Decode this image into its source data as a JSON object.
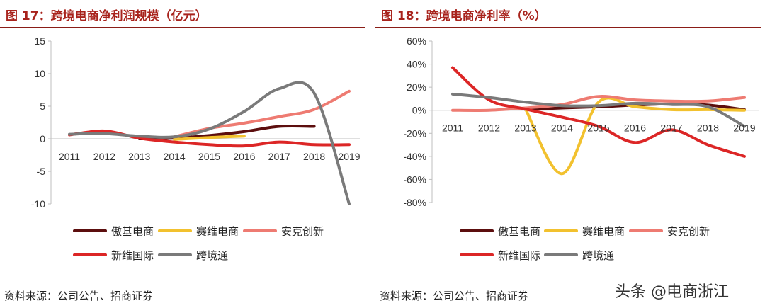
{
  "watermark": "头条 @电商浙江",
  "chart_data": [
    {
      "type": "line",
      "title": "图 17：跨境电商净利润规模（亿元）",
      "source": "资料来源：公司公告、招商证券",
      "x": [
        "2011",
        "2012",
        "2013",
        "2014",
        "2015",
        "2016",
        "2017",
        "2018",
        "2019"
      ],
      "ylim": [
        -10,
        15
      ],
      "yticks": [
        "15",
        "10",
        "5",
        "0",
        "-5",
        "-10"
      ],
      "grid": false,
      "legend_position": "bottom",
      "series": [
        {
          "name": "傲基电商",
          "color": "#5c0e0e",
          "points": [
            [
              "2013",
              0.0
            ],
            [
              "2014",
              0.1
            ],
            [
              "2015",
              0.5
            ],
            [
              "2016",
              1.1
            ],
            [
              "2017",
              1.9
            ],
            [
              "2018",
              1.9
            ]
          ]
        },
        {
          "name": "赛维电商",
          "color": "#f2c12e",
          "points": [
            [
              "2014",
              -0.1
            ],
            [
              "2015",
              0.2
            ],
            [
              "2016",
              0.4
            ]
          ]
        },
        {
          "name": "安克创新",
          "color": "#ee7b72",
          "points": [
            [
              "2014",
              0.3
            ],
            [
              "2015",
              1.6
            ],
            [
              "2016",
              2.4
            ],
            [
              "2017",
              3.4
            ],
            [
              "2018",
              4.5
            ],
            [
              "2019",
              7.3
            ]
          ]
        },
        {
          "name": "新维国际",
          "color": "#dc2626",
          "points": [
            [
              "2011",
              0.6
            ],
            [
              "2012",
              1.2
            ],
            [
              "2013",
              0.1
            ],
            [
              "2014",
              -0.5
            ],
            [
              "2015",
              -0.9
            ],
            [
              "2016",
              -1.1
            ],
            [
              "2017",
              -0.5
            ],
            [
              "2018",
              -0.9
            ],
            [
              "2019",
              -0.9
            ]
          ]
        },
        {
          "name": "跨境通",
          "color": "#7a7a7a",
          "points": [
            [
              "2011",
              0.7
            ],
            [
              "2012",
              0.8
            ],
            [
              "2013",
              0.4
            ],
            [
              "2014",
              0.3
            ],
            [
              "2015",
              1.5
            ],
            [
              "2016",
              4.2
            ],
            [
              "2017",
              7.7
            ],
            [
              "2018",
              7.0
            ],
            [
              "2019",
              -10.0
            ]
          ]
        }
      ]
    },
    {
      "type": "line",
      "title": "图 18：跨境电商净利率（%）",
      "source": "资料来源：公司公告、招商证券",
      "x": [
        "2011",
        "2012",
        "2013",
        "2014",
        "2015",
        "2016",
        "2017",
        "2018",
        "2019"
      ],
      "ylim": [
        -80,
        60
      ],
      "yticks": [
        "60%",
        "40%",
        "20%",
        "0%",
        "-20%",
        "-40%",
        "-60%",
        "-80%"
      ],
      "grid": false,
      "legend_position": "bottom",
      "series": [
        {
          "name": "傲基电商",
          "color": "#5c0e0e",
          "points": [
            [
              "2013",
              0.5
            ],
            [
              "2014",
              2.0
            ],
            [
              "2015",
              3.0
            ],
            [
              "2016",
              4.5
            ],
            [
              "2017",
              5.5
            ],
            [
              "2018",
              4.5
            ],
            [
              "2019",
              0.5
            ]
          ]
        },
        {
          "name": "赛维电商",
          "color": "#f2c12e",
          "points": [
            [
              "2013",
              1.0
            ],
            [
              "2014",
              -55.0
            ],
            [
              "2015",
              7.0
            ],
            [
              "2016",
              3.0
            ],
            [
              "2017",
              0.5
            ],
            [
              "2018",
              0.5
            ],
            [
              "2019",
              0.0
            ]
          ]
        },
        {
          "name": "安克创新",
          "color": "#ee7b72",
          "points": [
            [
              "2011",
              0.0
            ],
            [
              "2012",
              0.0
            ],
            [
              "2013",
              2.0
            ],
            [
              "2014",
              5.0
            ],
            [
              "2015",
              12.0
            ],
            [
              "2016",
              9.0
            ],
            [
              "2017",
              8.0
            ],
            [
              "2018",
              8.0
            ],
            [
              "2019",
              11.0
            ]
          ]
        },
        {
          "name": "新维国际",
          "color": "#dc2626",
          "points": [
            [
              "2011",
              37.0
            ],
            [
              "2012",
              9.0
            ],
            [
              "2013",
              1.0
            ],
            [
              "2014",
              -6.0
            ],
            [
              "2015",
              -14.0
            ],
            [
              "2016",
              -28.0
            ],
            [
              "2017",
              -17.0
            ],
            [
              "2018",
              -30.0
            ],
            [
              "2019",
              -40.0
            ]
          ]
        },
        {
          "name": "跨境通",
          "color": "#7a7a7a",
          "points": [
            [
              "2011",
              14.0
            ],
            [
              "2012",
              11.0
            ],
            [
              "2013",
              7.0
            ],
            [
              "2014",
              4.0
            ],
            [
              "2015",
              4.0
            ],
            [
              "2016",
              6.0
            ],
            [
              "2017",
              5.0
            ],
            [
              "2018",
              3.0
            ],
            [
              "2019",
              -14.0
            ]
          ]
        }
      ]
    }
  ]
}
